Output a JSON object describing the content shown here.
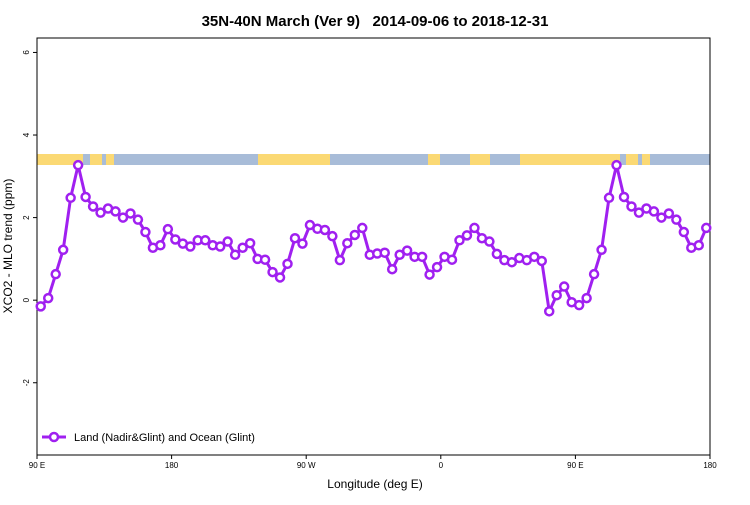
{
  "chart_data": {
    "type": "line",
    "title": "35N-40N March (Ver 9)   2014-09-06 to 2018-12-31",
    "x_label": "Longitude (deg E)",
    "y_label": "XCO2 - MLO trend (ppm)",
    "xlim": [
      90,
      540
    ],
    "xticks": [
      {
        "value": 90,
        "label": "90 E"
      },
      {
        "value": 180,
        "label": "180"
      },
      {
        "value": 270,
        "label": "90 W"
      },
      {
        "value": 360,
        "label": "0"
      },
      {
        "value": 450,
        "label": "90 E"
      },
      {
        "value": 540,
        "label": "180"
      }
    ],
    "ylim": [
      -3.75,
      6.35
    ],
    "yticks": [
      -2,
      0,
      2,
      4,
      6
    ],
    "legend": "bottom-left",
    "x": [
      92.5,
      97.5,
      102.5,
      107.5,
      112.5,
      117.5,
      122.5,
      127.5,
      132.5,
      137.5,
      142.5,
      147.5,
      152.5,
      157.5,
      162.5,
      167.5,
      172.5,
      177.5,
      182.5,
      187.5,
      192.5,
      197.5,
      202.5,
      207.5,
      212.5,
      217.5,
      222.5,
      227.5,
      232.5,
      237.5,
      242.5,
      247.5,
      252.5,
      257.5,
      262.5,
      267.5,
      272.5,
      277.5,
      282.5,
      287.5,
      292.5,
      297.5,
      302.5,
      307.5,
      312.5,
      317.5,
      322.5,
      327.5,
      332.5,
      337.5,
      342.5,
      347.5,
      352.5,
      357.5,
      362.5,
      367.5,
      372.5,
      377.5,
      382.5,
      387.5,
      392.5,
      397.5,
      402.5,
      407.5,
      412.5,
      417.5,
      422.5,
      427.5,
      432.5,
      437.5,
      442.5,
      447.5,
      452.5,
      457.5,
      462.5,
      467.5,
      472.5,
      477.5,
      482.5,
      487.5,
      492.5,
      497.5,
      502.5,
      507.5,
      512.5,
      517.5,
      522.5,
      527.5,
      532.5,
      537.5
    ],
    "series": [
      {
        "name": "Land (Nadir&Glint) and Ocean (Glint)",
        "color": "#a020f0",
        "values": [
          -0.15,
          0.05,
          0.63,
          1.22,
          2.48,
          3.27,
          2.5,
          2.27,
          2.12,
          2.22,
          2.15,
          2.0,
          2.1,
          1.95,
          1.65,
          1.27,
          1.33,
          1.72,
          1.47,
          1.37,
          1.3,
          1.45,
          1.45,
          1.33,
          1.3,
          1.42,
          1.1,
          1.27,
          1.38,
          1.0,
          0.98,
          0.68,
          0.55,
          0.88,
          1.5,
          1.37,
          1.82,
          1.73,
          1.7,
          1.55,
          0.97,
          1.38,
          1.58,
          1.75,
          1.1,
          1.13,
          1.15,
          0.75,
          1.1,
          1.2,
          1.05,
          1.05,
          0.62,
          0.8,
          1.05,
          0.98,
          1.45,
          1.57,
          1.75,
          1.5,
          1.42,
          1.12,
          0.97,
          0.92,
          1.02,
          0.97,
          1.05,
          0.95,
          -0.27,
          0.12,
          0.33,
          -0.05,
          -0.12,
          0.05,
          0.63,
          1.22,
          2.48,
          3.27,
          2.5,
          2.27,
          2.12,
          2.22,
          2.15,
          2.0,
          2.1,
          1.95,
          1.65,
          1.27,
          1.33,
          1.75
        ]
      }
    ]
  }
}
